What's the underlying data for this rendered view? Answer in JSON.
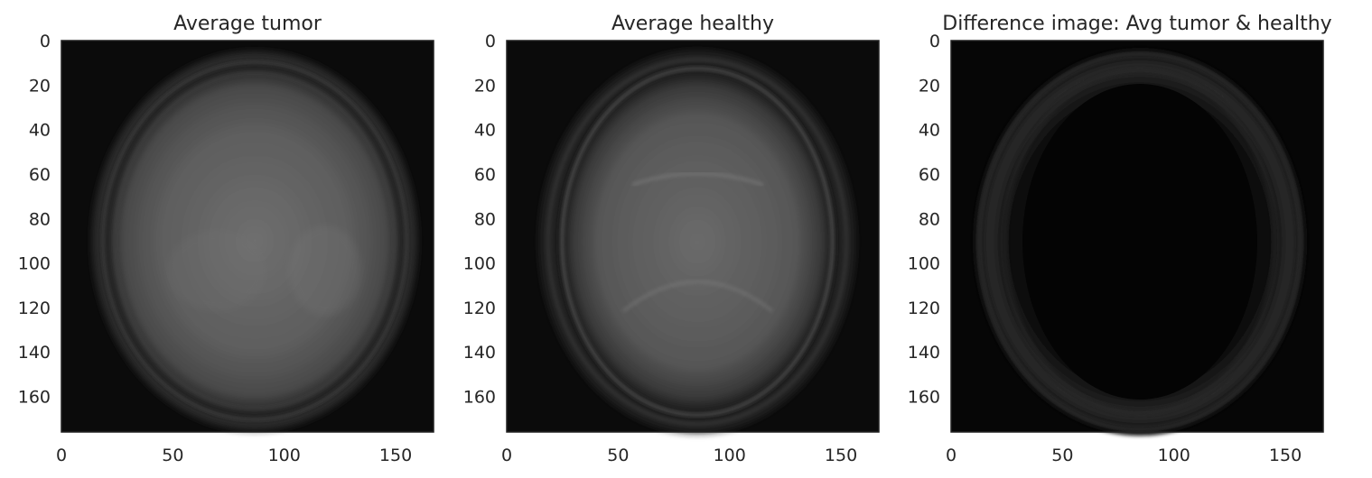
{
  "panels": [
    {
      "title": "Average tumor",
      "kind": "tumor",
      "x_ticks": [
        0,
        50,
        100,
        150
      ],
      "y_ticks": [
        0,
        20,
        40,
        60,
        80,
        100,
        120,
        140,
        160
      ],
      "x_range": [
        0,
        167
      ],
      "y_range": [
        0,
        176
      ]
    },
    {
      "title": "Average healthy",
      "kind": "healthy",
      "x_ticks": [
        0,
        50,
        100,
        150
      ],
      "y_ticks": [
        0,
        20,
        40,
        60,
        80,
        100,
        120,
        140,
        160
      ],
      "x_range": [
        0,
        167
      ],
      "y_range": [
        0,
        176
      ]
    },
    {
      "title": "Difference image: Avg tumor & healthy",
      "kind": "diff",
      "x_ticks": [
        0,
        50,
        100,
        150
      ],
      "y_ticks": [
        0,
        20,
        40,
        60,
        80,
        100,
        120,
        140,
        160
      ],
      "x_range": [
        0,
        167
      ],
      "y_range": [
        0,
        176
      ]
    }
  ]
}
